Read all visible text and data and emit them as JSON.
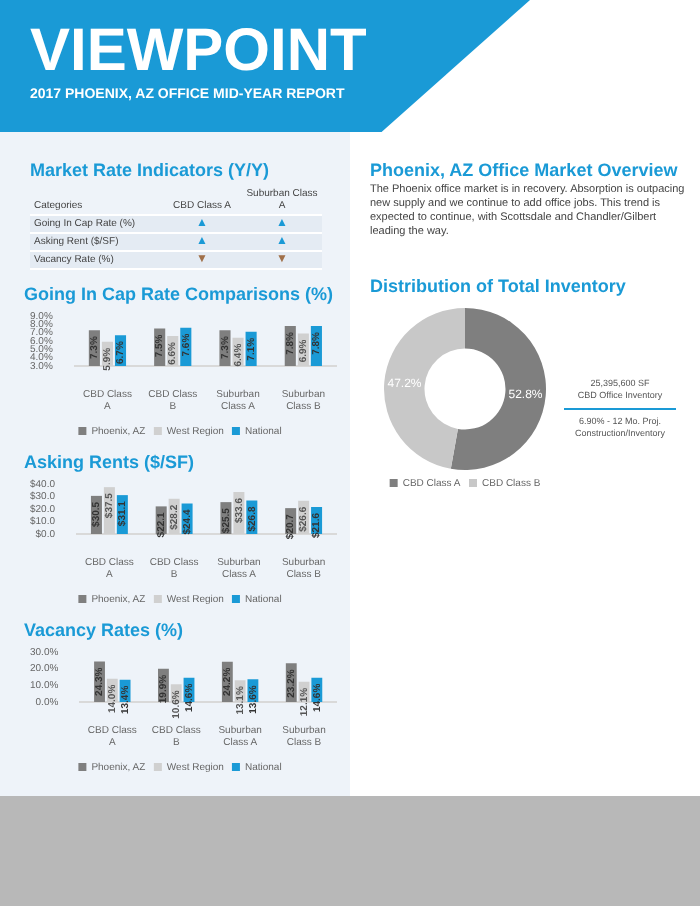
{
  "chart_data": [
    {
      "type": "other",
      "title": "VIEWPOINT",
      "subtitle": "2017 PHOENIX, AZ OFFICE MID-YEAR REPORT"
    },
    {
      "type": "other",
      "title": "Market Rate Indicators (Y/Y)",
      "annotations": [
        "Categories",
        "CBD Class A",
        "Suburban Class A",
        "Going In Cap Rate (%)",
        "▲",
        "▲",
        "Asking Rent ($/SF)",
        "▲",
        "▲",
        "Vacancy Rate (%)",
        "▼",
        "▼"
      ]
    },
    {
      "type": "bar",
      "title": "Going In Cap Rate Comparisons (%)",
      "categories": [
        "CBD Class A",
        "CBD Class B",
        "Suburban Class A",
        "Suburban Class B"
      ],
      "ylim": [
        3,
        9
      ],
      "yticks": [
        {
          "value": 3,
          "label": "3.0%"
        },
        {
          "value": 4,
          "label": "4.0%"
        },
        {
          "value": 5,
          "label": "5.0%"
        },
        {
          "value": 6,
          "label": "6.0%"
        },
        {
          "value": 7,
          "label": "7.0%"
        },
        {
          "value": 8,
          "label": "8.0%"
        },
        {
          "value": 9,
          "label": "9.0%"
        }
      ],
      "legend": "bottom",
      "series": [
        {
          "name": "Phoenix, AZ",
          "color": "#7f7f7f",
          "values": [
            7.3,
            7.5,
            7.3,
            7.8
          ],
          "value_labels": [
            "7.3%",
            "7.5%",
            "7.3%",
            "7.8%"
          ]
        },
        {
          "name": "West Region",
          "color": "#d0d0d0",
          "values": [
            5.9,
            6.6,
            6.4,
            6.9
          ],
          "value_labels": [
            "5.9%",
            "6.6%",
            "6.4%",
            "6.9%"
          ]
        },
        {
          "name": "National",
          "color": "#1a9ad6",
          "values": [
            6.7,
            7.6,
            7.1,
            7.8
          ],
          "value_labels": [
            "6.7%",
            "7.6%",
            "7.1%",
            "7.8%"
          ]
        }
      ]
    },
    {
      "type": "bar",
      "title": "Asking Rents ($/SF)",
      "categories": [
        "CBD Class A",
        "CBD Class B",
        "Suburban Class A",
        "Suburban Class B"
      ],
      "ylim": [
        0,
        40
      ],
      "yticks": [
        {
          "value": 0,
          "label": "$0.0"
        },
        {
          "value": 10,
          "label": "$10.0"
        },
        {
          "value": 20,
          "label": "$20.0"
        },
        {
          "value": 30,
          "label": "$30.0"
        },
        {
          "value": 40,
          "label": "$40.0"
        }
      ],
      "legend": "bottom",
      "series": [
        {
          "name": "Phoenix, AZ",
          "color": "#7f7f7f",
          "values": [
            30.5,
            22.1,
            25.5,
            20.7
          ],
          "value_labels": [
            "$30.5",
            "$22.1",
            "$25.5",
            "$20.7"
          ]
        },
        {
          "name": "West Region",
          "color": "#d0d0d0",
          "values": [
            37.5,
            28.2,
            33.6,
            26.6
          ],
          "value_labels": [
            "$37.5",
            "$28.2",
            "$33.6",
            "$26.6"
          ]
        },
        {
          "name": "National",
          "color": "#1a9ad6",
          "values": [
            31.1,
            24.4,
            26.8,
            21.6
          ],
          "value_labels": [
            "$31.1",
            "$24.4",
            "$26.8",
            "$21.6"
          ]
        }
      ]
    },
    {
      "type": "bar",
      "title": "Vacancy Rates (%)",
      "categories": [
        "CBD Class A",
        "CBD Class B",
        "Suburban Class A",
        "Suburban Class B"
      ],
      "ylim": [
        0,
        30
      ],
      "yticks": [
        {
          "value": 0,
          "label": "0.0%"
        },
        {
          "value": 10,
          "label": "10.0%"
        },
        {
          "value": 20,
          "label": "20.0%"
        },
        {
          "value": 30,
          "label": "30.0%"
        }
      ],
      "legend": "bottom",
      "series": [
        {
          "name": "Phoenix, AZ",
          "color": "#7f7f7f",
          "values": [
            24.3,
            19.9,
            24.2,
            23.2
          ],
          "value_labels": [
            "24.3%",
            "19.9%",
            "24.2%",
            "23.2%"
          ]
        },
        {
          "name": "West Region",
          "color": "#d0d0d0",
          "values": [
            14.0,
            10.6,
            13.1,
            12.1
          ],
          "value_labels": [
            "14.0%",
            "10.6%",
            "13.1%",
            "12.1%"
          ]
        },
        {
          "name": "National",
          "color": "#1a9ad6",
          "values": [
            13.4,
            14.6,
            13.6,
            14.6
          ],
          "value_labels": [
            "13.4%",
            "14.6%",
            "13.6%",
            "14.6%"
          ]
        }
      ]
    },
    {
      "type": "other",
      "title": "Phoenix, AZ Office Market Overview",
      "annotations": [
        "The Phoenix office market is in recovery. Absorption is outpacing new supply and we continue to add office jobs. This trend is expected to continue, with Scottsdale and Chandler/Gilbert leading the way."
      ]
    },
    {
      "type": "donut",
      "title": "Distribution of Total Inventory",
      "categories": [
        "CBD Class A",
        "CBD Class B"
      ],
      "values": [
        52.8,
        47.2
      ],
      "colors": [
        "#7f7f7f",
        "#c8c8c8"
      ],
      "value_labels": [
        "52.8%",
        "47.2%"
      ],
      "legend": "bottom",
      "annotations": [
        "25,395,600 SF",
        "CBD Office Inventory",
        "6.90% - 12 Mo. Proj. Construction/Inventory"
      ]
    }
  ]
}
